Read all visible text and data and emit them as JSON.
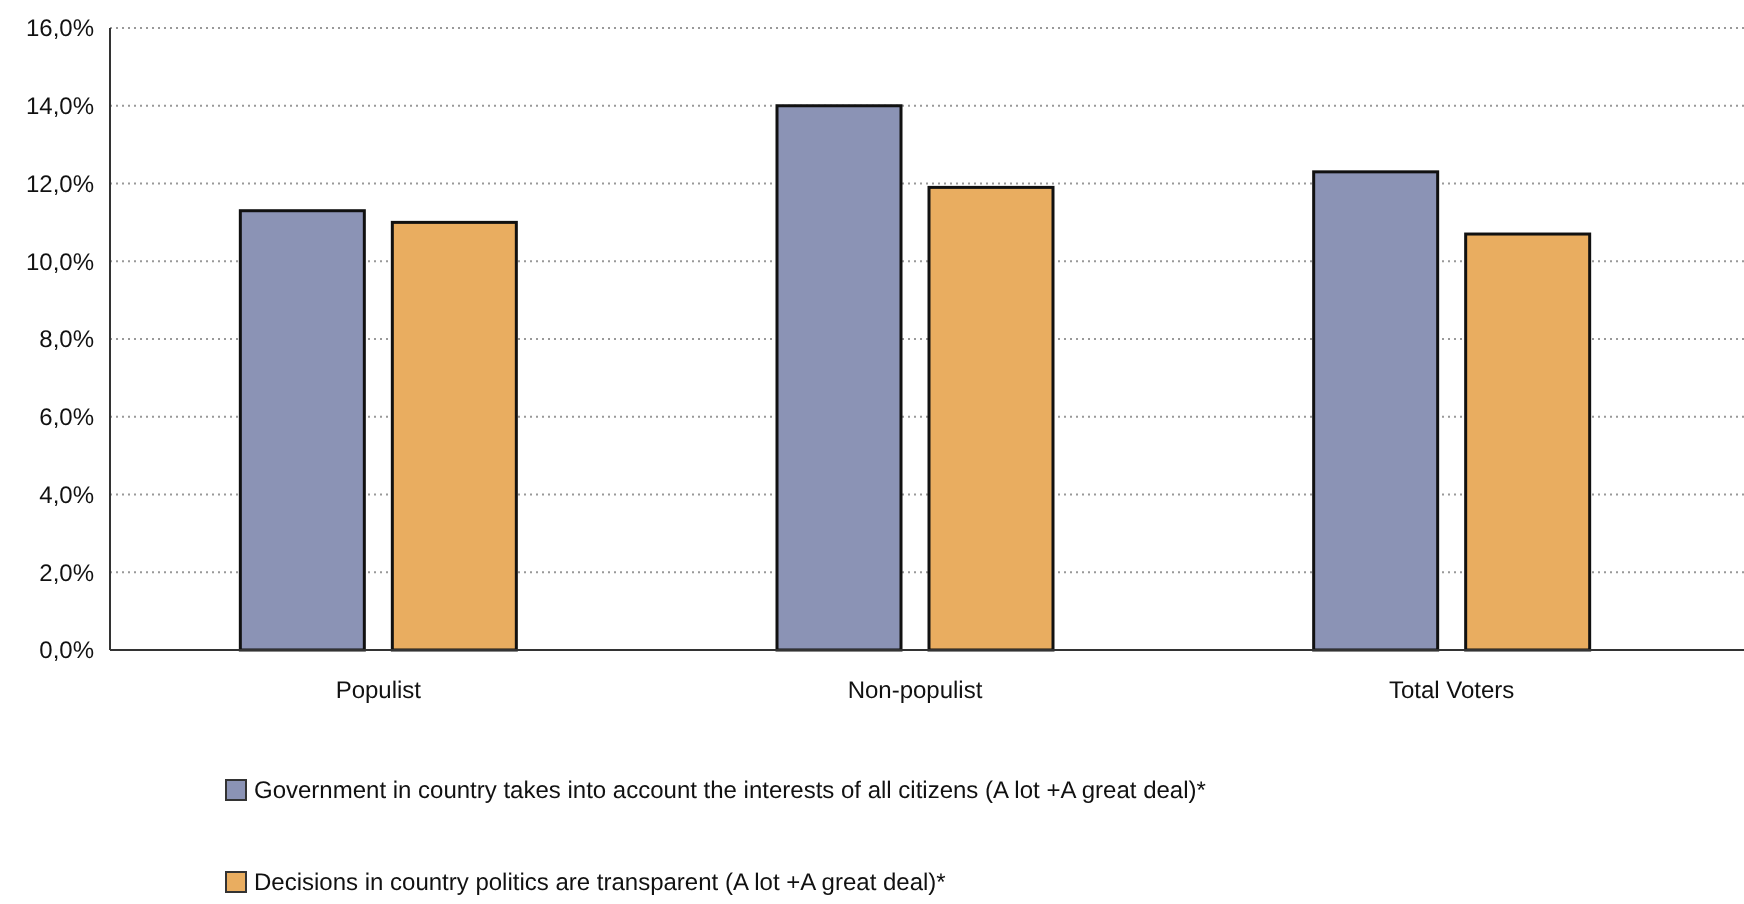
{
  "chart_data": {
    "type": "bar",
    "categories": [
      "Populist",
      "Non-populist",
      "Total Voters"
    ],
    "series": [
      {
        "name": "Government in country takes into account the interests of all citizens (A lot +A great deal)*",
        "color": "#8b93b5",
        "values": [
          11.3,
          14.0,
          12.3
        ]
      },
      {
        "name": "Decisions in country politics are transparent (A lot +A great deal)*",
        "color": "#e9ad60",
        "values": [
          11.0,
          11.9,
          10.7
        ]
      }
    ],
    "ylim": [
      0,
      16
    ],
    "yticks": [
      {
        "value": 0,
        "label": "0,0%"
      },
      {
        "value": 2,
        "label": "2,0%"
      },
      {
        "value": 4,
        "label": "4,0%"
      },
      {
        "value": 6,
        "label": "6,0%"
      },
      {
        "value": 8,
        "label": "8,0%"
      },
      {
        "value": 10,
        "label": "10,0%"
      },
      {
        "value": 12,
        "label": "12,0%"
      },
      {
        "value": 14,
        "label": "14,0%"
      },
      {
        "value": 16,
        "label": "16,0%"
      }
    ],
    "grid": "y",
    "legend": "bottom"
  }
}
